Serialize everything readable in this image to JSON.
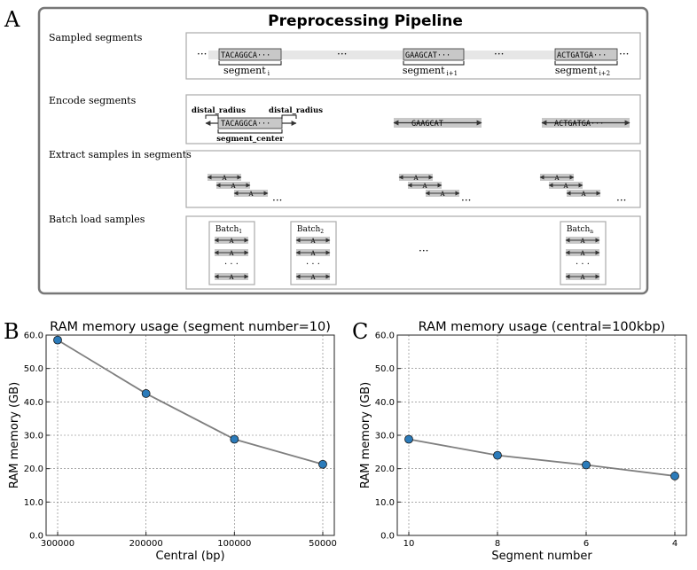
{
  "panel_a": {
    "letter": "A",
    "title": "Preprocessing Pipeline",
    "rows": {
      "sampled": {
        "label": "Sampled segments",
        "sequences": [
          "TACAGGCA",
          "GAAGCAT",
          "ACTGATGA"
        ],
        "segment_word": "segment",
        "segment_subs": [
          "i",
          "i+1",
          "i+2"
        ]
      },
      "encode": {
        "label": "Encode segments",
        "distal_left": "distal_radius",
        "distal_right": "distal_radius",
        "center_label": "segment_center",
        "sequences": [
          "TACAGGCA",
          "GAAGCAT",
          "ACTGATGA"
        ]
      },
      "extract": {
        "label": "Extract samples in  segments",
        "sample_char": "A"
      },
      "batch": {
        "label": "Batch load samples",
        "batch_word": "Batch",
        "batch_subs": [
          "1",
          "2",
          "n"
        ]
      }
    },
    "ellipsis": "···",
    "dots": "· · ·"
  },
  "chart_data": [
    {
      "letter": "B",
      "type": "line",
      "title": "RAM memory usage (segment number=10)",
      "xlabel": "Central (bp)",
      "ylabel": "RAM memory (GB)",
      "categories": [
        "300000",
        "200000",
        "100000",
        "50000"
      ],
      "values": [
        58.5,
        42.5,
        28.8,
        21.3
      ],
      "ylim": [
        0,
        60
      ],
      "yticks": [
        "0.0",
        "10.0",
        "20.0",
        "30.0",
        "40.0",
        "50.0",
        "60.0"
      ],
      "grid": true,
      "line_color": "#7f7f7f",
      "marker_color": "#2b7bba"
    },
    {
      "letter": "C",
      "type": "line",
      "title": "RAM memory usage (central=100kbp)",
      "xlabel": "Segment number",
      "ylabel": "RAM memory (GB)",
      "categories": [
        "10",
        "8",
        "6",
        "4"
      ],
      "values": [
        28.8,
        24.0,
        21.1,
        17.8
      ],
      "ylim": [
        0,
        60
      ],
      "yticks": [
        "0.0",
        "10.0",
        "20.0",
        "30.0",
        "40.0",
        "50.0",
        "60.0"
      ],
      "grid": true,
      "line_color": "#7f7f7f",
      "marker_color": "#2b7bba"
    }
  ]
}
